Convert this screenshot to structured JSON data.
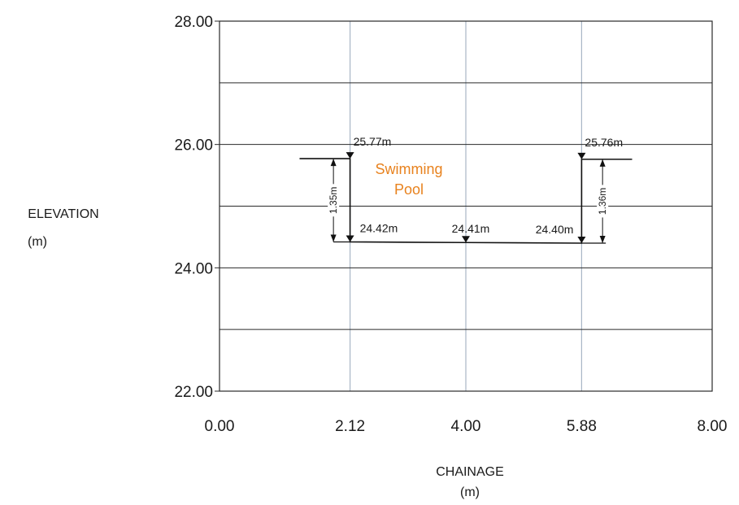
{
  "chart_data": {
    "type": "line",
    "title": "",
    "xlabel": "CHAINAGE",
    "xunit": "(m)",
    "ylabel": "ELEVATION",
    "yunit": "(m)",
    "xlim": [
      0,
      8
    ],
    "ylim": [
      22,
      28
    ],
    "x_ticks": [
      0,
      2.12,
      4,
      5.88,
      8
    ],
    "x_tick_labels": [
      "0.00",
      "2.12",
      "4.00",
      "5.88",
      "8.00"
    ],
    "y_ticks": [
      22,
      24,
      26,
      28
    ],
    "y_tick_labels": [
      "22.00",
      "24.00",
      "26.00",
      "28.00"
    ],
    "y_grid": [
      23,
      25,
      27
    ],
    "grid": true,
    "series": [
      {
        "name": "Swimming Pool",
        "points": [
          {
            "x": 1.3,
            "y": 25.77
          },
          {
            "x": 2.12,
            "y": 25.77
          },
          {
            "x": 2.12,
            "y": 24.42
          },
          {
            "x": 4.0,
            "y": 24.41
          },
          {
            "x": 5.88,
            "y": 24.4
          },
          {
            "x": 5.88,
            "y": 25.76
          },
          {
            "x": 6.7,
            "y": 25.76
          }
        ]
      }
    ],
    "annotations": {
      "pool_label": [
        "Swimming",
        "Pool"
      ],
      "pool_label_color": "#e8821e",
      "elevation_markers": [
        {
          "x": 2.12,
          "y": 25.77,
          "label": "25.77m"
        },
        {
          "x": 5.88,
          "y": 25.76,
          "label": "25.76m"
        },
        {
          "x": 2.12,
          "y": 24.42,
          "label": "24.42m"
        },
        {
          "x": 4.0,
          "y": 24.41,
          "label": "24.41m"
        },
        {
          "x": 5.88,
          "y": 24.4,
          "label": "24.40m"
        }
      ],
      "depth_dimensions": [
        {
          "x": 1.85,
          "top": 25.77,
          "bottom": 24.42,
          "label": "1.35m"
        },
        {
          "x": 6.22,
          "top": 25.76,
          "bottom": 24.4,
          "label": "1.36m"
        }
      ]
    },
    "colors": {
      "grid_vertical": "#a9b6c6",
      "grid_horizontal": "#2a2a2a",
      "profile": "#111111"
    }
  }
}
